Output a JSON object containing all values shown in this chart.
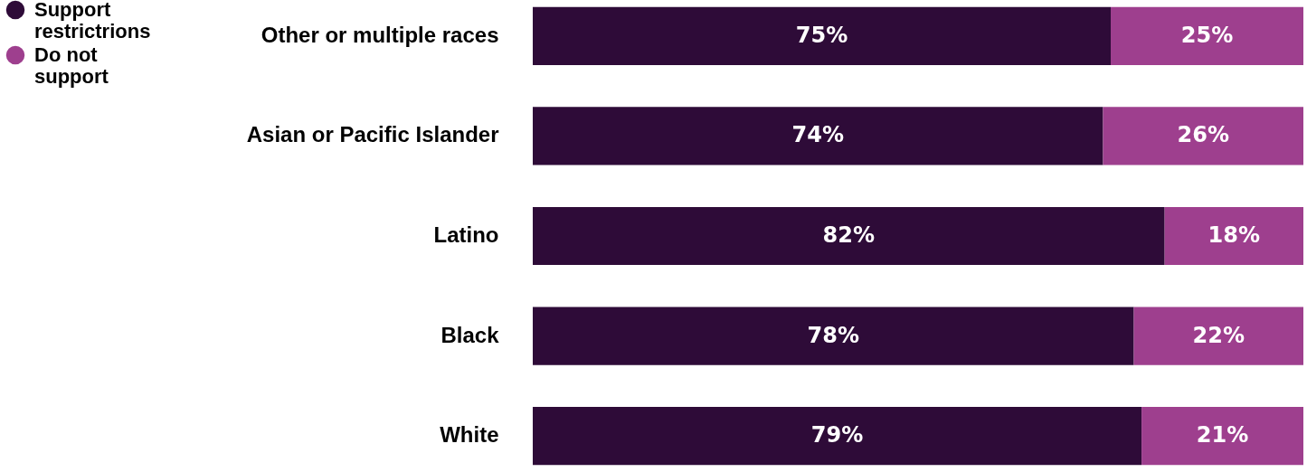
{
  "chart_data": {
    "type": "bar",
    "orientation": "horizontal",
    "stacked": true,
    "categories": [
      "Other or multiple races",
      "Asian or Pacific Islander",
      "Latino",
      "Black",
      "White"
    ],
    "series": [
      {
        "name": "Support restrictrions",
        "color": "#2e0b38",
        "values": [
          75,
          74,
          82,
          78,
          79
        ],
        "value_labels": [
          "75%",
          "74%",
          "82%",
          "78%",
          "79%"
        ]
      },
      {
        "name": "Do not support",
        "color": "#9e3f8e",
        "values": [
          25,
          26,
          18,
          22,
          21
        ],
        "value_labels": [
          "25%",
          "26%",
          "18%",
          "22%",
          "21%"
        ]
      }
    ],
    "xlim": [
      0,
      100
    ],
    "legend": "top left",
    "tick_labels": "y"
  }
}
